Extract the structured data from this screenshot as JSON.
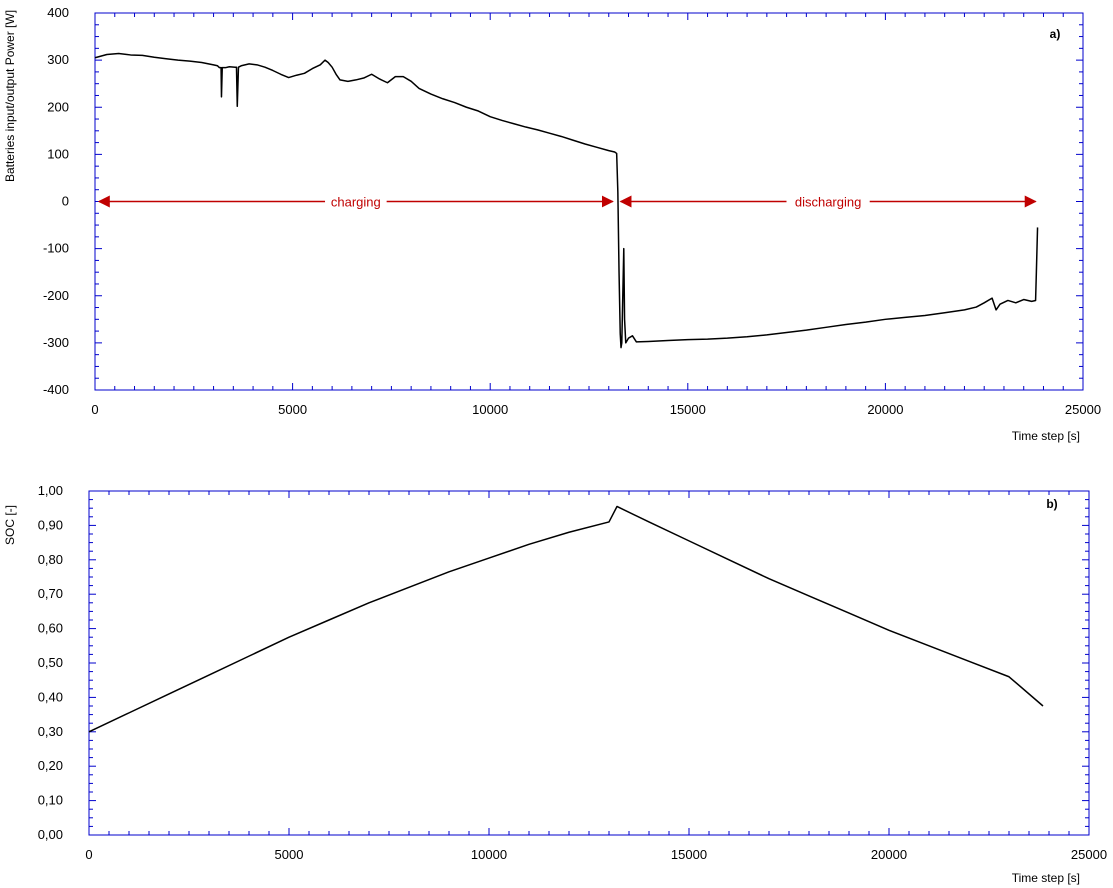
{
  "chart_data": [
    {
      "type": "line",
      "panel_label": "a)",
      "title": "",
      "xlabel": "Time step [s]",
      "ylabel": "Batteries input/output Power [W]",
      "xlim": [
        0,
        25000
      ],
      "ylim": [
        -400,
        400
      ],
      "x_ticks": [
        0,
        5000,
        10000,
        15000,
        20000,
        25000
      ],
      "y_ticks": [
        -400,
        -300,
        -200,
        -100,
        0,
        100,
        200,
        300,
        400
      ],
      "x_tick_labels": [
        "0",
        "5000",
        "10000",
        "15000",
        "20000",
        "25000"
      ],
      "y_tick_labels": [
        "-400",
        "-300",
        "-200",
        "-100",
        "0",
        "100",
        "200",
        "300",
        "400"
      ],
      "grid": false,
      "frame_color": "#0000cc",
      "series": [
        {
          "color": "#000000",
          "points": [
            [
              0,
              305
            ],
            [
              300,
              312
            ],
            [
              600,
              314
            ],
            [
              900,
              311
            ],
            [
              1200,
              310
            ],
            [
              1500,
              306
            ],
            [
              1800,
              303
            ],
            [
              2100,
              300
            ],
            [
              2400,
              298
            ],
            [
              2700,
              295
            ],
            [
              3000,
              290
            ],
            [
              3100,
              288
            ],
            [
              3150,
              284
            ],
            [
              3190,
              284
            ],
            [
              3200,
              222
            ],
            [
              3220,
              284
            ],
            [
              3300,
              284
            ],
            [
              3400,
              286
            ],
            [
              3550,
              285
            ],
            [
              3580,
              285
            ],
            [
              3600,
              202
            ],
            [
              3630,
              285
            ],
            [
              3700,
              288
            ],
            [
              3900,
              292
            ],
            [
              4100,
              290
            ],
            [
              4300,
              285
            ],
            [
              4500,
              278
            ],
            [
              4700,
              270
            ],
            [
              4900,
              263
            ],
            [
              5100,
              268
            ],
            [
              5300,
              272
            ],
            [
              5500,
              282
            ],
            [
              5700,
              290
            ],
            [
              5820,
              300
            ],
            [
              5900,
              295
            ],
            [
              6000,
              285
            ],
            [
              6100,
              270
            ],
            [
              6200,
              258
            ],
            [
              6400,
              255
            ],
            [
              6600,
              258
            ],
            [
              6800,
              262
            ],
            [
              7000,
              270
            ],
            [
              7200,
              260
            ],
            [
              7400,
              252
            ],
            [
              7600,
              265
            ],
            [
              7800,
              265
            ],
            [
              8000,
              255
            ],
            [
              8200,
              240
            ],
            [
              8500,
              228
            ],
            [
              8800,
              218
            ],
            [
              9100,
              210
            ],
            [
              9400,
              200
            ],
            [
              9700,
              192
            ],
            [
              10000,
              180
            ],
            [
              10300,
              172
            ],
            [
              10600,
              165
            ],
            [
              10900,
              158
            ],
            [
              11200,
              152
            ],
            [
              11500,
              145
            ],
            [
              11800,
              138
            ],
            [
              12100,
              130
            ],
            [
              12400,
              122
            ],
            [
              12700,
              115
            ],
            [
              13000,
              108
            ],
            [
              13150,
              105
            ],
            [
              13200,
              102
            ],
            [
              13230,
              20
            ],
            [
              13260,
              -150
            ],
            [
              13290,
              -280
            ],
            [
              13310,
              -310
            ],
            [
              13330,
              -300
            ],
            [
              13360,
              -180
            ],
            [
              13380,
              -100
            ],
            [
              13400,
              -250
            ],
            [
              13430,
              -300
            ],
            [
              13500,
              -290
            ],
            [
              13600,
              -285
            ],
            [
              13700,
              -298
            ],
            [
              14000,
              -297
            ],
            [
              14500,
              -295
            ],
            [
              15000,
              -293
            ],
            [
              15500,
              -292
            ],
            [
              16000,
              -290
            ],
            [
              16500,
              -287
            ],
            [
              17000,
              -283
            ],
            [
              17500,
              -278
            ],
            [
              18000,
              -273
            ],
            [
              18500,
              -267
            ],
            [
              19000,
              -261
            ],
            [
              19500,
              -256
            ],
            [
              20000,
              -250
            ],
            [
              20500,
              -246
            ],
            [
              21000,
              -242
            ],
            [
              21500,
              -236
            ],
            [
              22000,
              -230
            ],
            [
              22300,
              -224
            ],
            [
              22500,
              -215
            ],
            [
              22700,
              -205
            ],
            [
              22800,
              -230
            ],
            [
              22900,
              -218
            ],
            [
              23100,
              -210
            ],
            [
              23300,
              -215
            ],
            [
              23500,
              -208
            ],
            [
              23700,
              -212
            ],
            [
              23800,
              -210
            ],
            [
              23820,
              -150
            ],
            [
              23850,
              -55
            ]
          ]
        }
      ],
      "annotations": [
        {
          "text": "charging",
          "x_start": 0,
          "x_end": 13200,
          "y": 0
        },
        {
          "text": "discharging",
          "x_start": 13200,
          "x_end": 23900,
          "y": 0
        }
      ]
    },
    {
      "type": "line",
      "panel_label": "b)",
      "title": "",
      "xlabel": "Time step [s]",
      "ylabel": "SOC [-]",
      "xlim": [
        0,
        25000
      ],
      "ylim": [
        0,
        1
      ],
      "x_ticks": [
        0,
        5000,
        10000,
        15000,
        20000,
        25000
      ],
      "y_ticks": [
        0,
        0.1,
        0.2,
        0.3,
        0.4,
        0.5,
        0.6,
        0.7,
        0.8,
        0.9,
        1.0
      ],
      "x_tick_labels": [
        "0",
        "5000",
        "10000",
        "15000",
        "20000",
        "25000"
      ],
      "y_tick_labels": [
        "0,00",
        "0,10",
        "0,20",
        "0,30",
        "0,40",
        "0,50",
        "0,60",
        "0,70",
        "0,80",
        "0,90",
        "1,00"
      ],
      "grid": false,
      "frame_color": "#0000cc",
      "series": [
        {
          "color": "#000000",
          "points": [
            [
              0,
              0.3
            ],
            [
              1000,
              0.355
            ],
            [
              2000,
              0.41
            ],
            [
              3000,
              0.465
            ],
            [
              4000,
              0.52
            ],
            [
              5000,
              0.575
            ],
            [
              6000,
              0.625
            ],
            [
              7000,
              0.675
            ],
            [
              8000,
              0.72
            ],
            [
              9000,
              0.765
            ],
            [
              10000,
              0.805
            ],
            [
              11000,
              0.845
            ],
            [
              12000,
              0.88
            ],
            [
              13000,
              0.91
            ],
            [
              13200,
              0.955
            ],
            [
              14000,
              0.91
            ],
            [
              15000,
              0.855
            ],
            [
              16000,
              0.8
            ],
            [
              17000,
              0.745
            ],
            [
              18000,
              0.695
            ],
            [
              19000,
              0.645
            ],
            [
              20000,
              0.595
            ],
            [
              21000,
              0.55
            ],
            [
              22000,
              0.505
            ],
            [
              23000,
              0.46
            ],
            [
              23850,
              0.375
            ]
          ]
        }
      ]
    }
  ]
}
